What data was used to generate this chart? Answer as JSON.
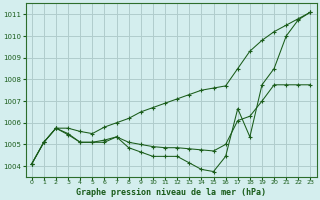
{
  "title": "Graphe pression niveau de la mer (hPa)",
  "background_color": "#d4eeee",
  "grid_color": "#b0cccc",
  "line_color": "#1a5c1a",
  "ylim": [
    1003.5,
    1011.5
  ],
  "yticks": [
    1004,
    1005,
    1006,
    1007,
    1008,
    1009,
    1010,
    1011
  ],
  "x_labels": [
    "0",
    "1",
    "2",
    "3",
    "4",
    "5",
    "6",
    "7",
    "8",
    "9",
    "10",
    "11",
    "12",
    "13",
    "14",
    "15",
    "16",
    "17",
    "18",
    "19",
    "20",
    "21",
    "22",
    "23"
  ],
  "series": [
    [
      1004.1,
      1005.1,
      1005.75,
      1005.75,
      1005.6,
      1005.5,
      1005.8,
      1006.0,
      1006.2,
      1006.5,
      1006.7,
      1006.9,
      1007.1,
      1007.3,
      1007.5,
      1007.6,
      1007.7,
      1008.5,
      1009.3,
      1009.8,
      1010.2,
      1010.5,
      1010.8,
      1011.1
    ],
    [
      1004.1,
      1005.1,
      1005.75,
      1005.5,
      1005.1,
      1005.1,
      1005.1,
      1005.35,
      1005.1,
      1005.0,
      1004.9,
      1004.85,
      1004.85,
      1004.8,
      1004.75,
      1004.7,
      1005.0,
      1006.1,
      1006.3,
      1007.0,
      1007.75,
      1007.75,
      1007.75,
      1007.75
    ],
    [
      1004.1,
      1005.1,
      1005.75,
      1005.45,
      1005.1,
      1005.1,
      1005.2,
      1005.35,
      1004.85,
      1004.65,
      1004.45,
      1004.45,
      1004.45,
      1004.15,
      1003.85,
      1003.75,
      1004.45,
      1006.65,
      1005.35,
      1007.75,
      1008.5,
      1010.0,
      1010.75,
      1011.1
    ]
  ]
}
